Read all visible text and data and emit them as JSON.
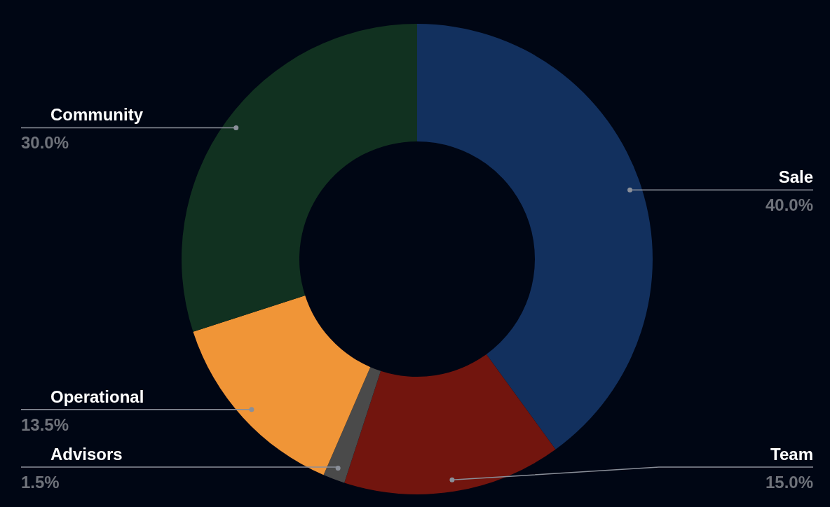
{
  "chart_data": {
    "type": "donut",
    "categories": [
      "Sale",
      "Team",
      "Advisors",
      "Operational",
      "Community"
    ],
    "values": [
      40,
      15,
      1.5,
      13.5,
      30
    ],
    "value_labels": [
      "40.0%",
      "15.0%",
      "1.5%",
      "13.5%",
      "30.0%"
    ],
    "colors": [
      "#12305e",
      "#72150e",
      "#4a4a4a",
      "#f09537",
      "#113120"
    ]
  }
}
